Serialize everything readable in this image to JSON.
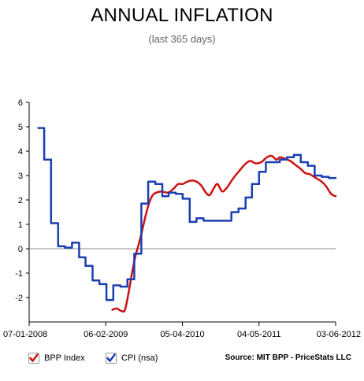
{
  "title": "ANNUAL INFLATION",
  "subtitle": "(last 365 days)",
  "source": "Source: MIT BPP - PriceStats LLC",
  "legend": {
    "bpp": "BPP Index",
    "cpi": "CPI (nsa)"
  },
  "chart_data": {
    "type": "line",
    "title": "ANNUAL INFLATION",
    "subtitle": "(last 365 days)",
    "xlabel": "",
    "ylabel": "",
    "x_tick_labels": [
      "07-01-2008",
      "06-02-2009",
      "05-04-2010",
      "04-05-2011",
      "03-06-2012"
    ],
    "x_ticks": [
      "2008-07-01",
      "2009-06-02",
      "2010-05-04",
      "2011-04-05",
      "2012-03-06"
    ],
    "xlim": [
      "2008-07-01",
      "2012-03-06"
    ],
    "y_ticks": [
      -2,
      -1,
      0,
      1,
      2,
      3,
      4,
      5,
      6
    ],
    "ylim": [
      -3,
      6
    ],
    "grid": false,
    "legend_position": "bottom-left",
    "series": [
      {
        "name": "BPP Index",
        "color": "#cc1111",
        "line_style": "smooth",
        "points": [
          [
            "2009-07-01",
            -2.5
          ],
          [
            "2009-07-20",
            -2.45
          ],
          [
            "2009-08-10",
            -2.55
          ],
          [
            "2009-08-25",
            -2.5
          ],
          [
            "2009-09-10",
            -1.8
          ],
          [
            "2009-09-25",
            -1.0
          ],
          [
            "2009-10-10",
            -0.3
          ],
          [
            "2009-10-25",
            0.2
          ],
          [
            "2009-11-10",
            0.8
          ],
          [
            "2009-11-25",
            1.4
          ],
          [
            "2009-12-10",
            1.9
          ],
          [
            "2009-12-25",
            2.2
          ],
          [
            "2010-01-10",
            2.3
          ],
          [
            "2010-02-01",
            2.35
          ],
          [
            "2010-03-01",
            2.3
          ],
          [
            "2010-03-25",
            2.45
          ],
          [
            "2010-04-15",
            2.65
          ],
          [
            "2010-05-05",
            2.65
          ],
          [
            "2010-05-25",
            2.75
          ],
          [
            "2010-06-15",
            2.8
          ],
          [
            "2010-07-05",
            2.75
          ],
          [
            "2010-07-25",
            2.6
          ],
          [
            "2010-08-15",
            2.3
          ],
          [
            "2010-09-01",
            2.2
          ],
          [
            "2010-09-20",
            2.5
          ],
          [
            "2010-10-05",
            2.65
          ],
          [
            "2010-10-25",
            2.35
          ],
          [
            "2010-11-15",
            2.5
          ],
          [
            "2010-12-10",
            2.85
          ],
          [
            "2011-01-05",
            3.15
          ],
          [
            "2011-02-01",
            3.45
          ],
          [
            "2011-02-25",
            3.6
          ],
          [
            "2011-03-20",
            3.5
          ],
          [
            "2011-04-15",
            3.55
          ],
          [
            "2011-05-10",
            3.75
          ],
          [
            "2011-06-01",
            3.8
          ],
          [
            "2011-06-20",
            3.65
          ],
          [
            "2011-07-05",
            3.75
          ],
          [
            "2011-07-25",
            3.7
          ],
          [
            "2011-08-20",
            3.6
          ],
          [
            "2011-09-10",
            3.45
          ],
          [
            "2011-10-01",
            3.3
          ],
          [
            "2011-10-25",
            3.1
          ],
          [
            "2011-11-15",
            3.05
          ],
          [
            "2011-12-10",
            2.9
          ],
          [
            "2012-01-05",
            2.75
          ],
          [
            "2012-01-25",
            2.55
          ],
          [
            "2012-02-15",
            2.25
          ],
          [
            "2012-03-06",
            2.15
          ]
        ]
      },
      {
        "name": "CPI (nsa)",
        "color": "#1a3fb0",
        "line_style": "step",
        "points": [
          [
            "2008-08-10",
            4.95
          ],
          [
            "2008-09-05",
            3.65
          ],
          [
            "2008-10-05",
            1.05
          ],
          [
            "2008-11-05",
            0.1
          ],
          [
            "2008-12-05",
            0.05
          ],
          [
            "2009-01-05",
            0.25
          ],
          [
            "2009-02-05",
            -0.35
          ],
          [
            "2009-03-05",
            -0.7
          ],
          [
            "2009-04-05",
            -1.3
          ],
          [
            "2009-05-05",
            -1.45
          ],
          [
            "2009-06-05",
            -2.1
          ],
          [
            "2009-07-05",
            -1.5
          ],
          [
            "2009-08-05",
            -1.55
          ],
          [
            "2009-09-05",
            -1.25
          ],
          [
            "2009-10-05",
            -0.2
          ],
          [
            "2009-11-05",
            1.85
          ],
          [
            "2009-12-05",
            2.75
          ],
          [
            "2010-01-05",
            2.65
          ],
          [
            "2010-02-05",
            2.15
          ],
          [
            "2010-03-05",
            2.3
          ],
          [
            "2010-04-05",
            2.25
          ],
          [
            "2010-05-05",
            2.05
          ],
          [
            "2010-06-05",
            1.1
          ],
          [
            "2010-07-05",
            1.25
          ],
          [
            "2010-08-05",
            1.15
          ],
          [
            "2010-09-05",
            1.15
          ],
          [
            "2010-10-05",
            1.15
          ],
          [
            "2010-11-05",
            1.15
          ],
          [
            "2010-12-05",
            1.5
          ],
          [
            "2011-01-05",
            1.65
          ],
          [
            "2011-02-05",
            2.1
          ],
          [
            "2011-03-05",
            2.65
          ],
          [
            "2011-04-05",
            3.15
          ],
          [
            "2011-05-05",
            3.55
          ],
          [
            "2011-06-05",
            3.55
          ],
          [
            "2011-07-05",
            3.65
          ],
          [
            "2011-08-05",
            3.75
          ],
          [
            "2011-09-05",
            3.85
          ],
          [
            "2011-10-05",
            3.55
          ],
          [
            "2011-11-05",
            3.4
          ],
          [
            "2011-12-05",
            3.0
          ],
          [
            "2012-01-05",
            2.95
          ],
          [
            "2012-02-05",
            2.9
          ],
          [
            "2012-03-06",
            2.9
          ]
        ]
      }
    ]
  }
}
